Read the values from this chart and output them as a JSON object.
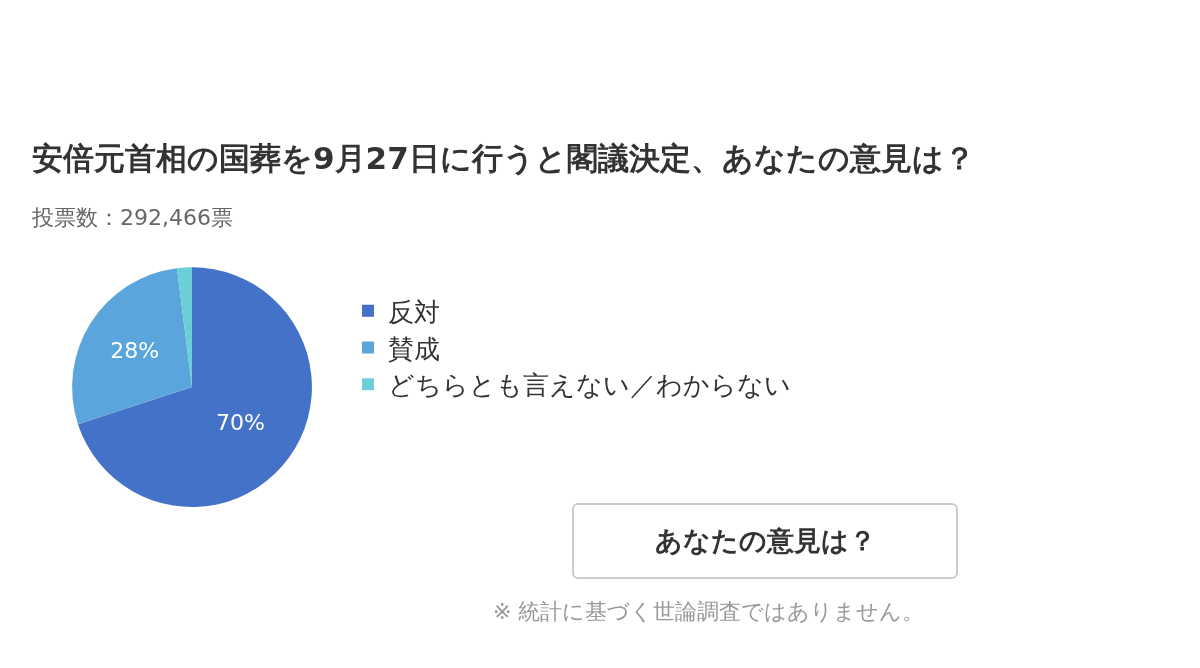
{
  "chart_data": {
    "type": "pie",
    "title": "安倍元首相の国葬を9月27日に行うと閣議決定、あなたの意見は？",
    "subtitle": "投票数：292,466票",
    "categories": [
      "反対",
      "賛成",
      "どちらとも言えない／わからない"
    ],
    "values": [
      70,
      28,
      2
    ],
    "colors": [
      "#4472c9",
      "#5aa6dc",
      "#6ccfd8"
    ],
    "value_labels": [
      "70%",
      "28%",
      null
    ],
    "legend": "right",
    "annotations": [
      "あなたの意見は？",
      "※ 統計に基づく世論調査ではありません。"
    ]
  }
}
